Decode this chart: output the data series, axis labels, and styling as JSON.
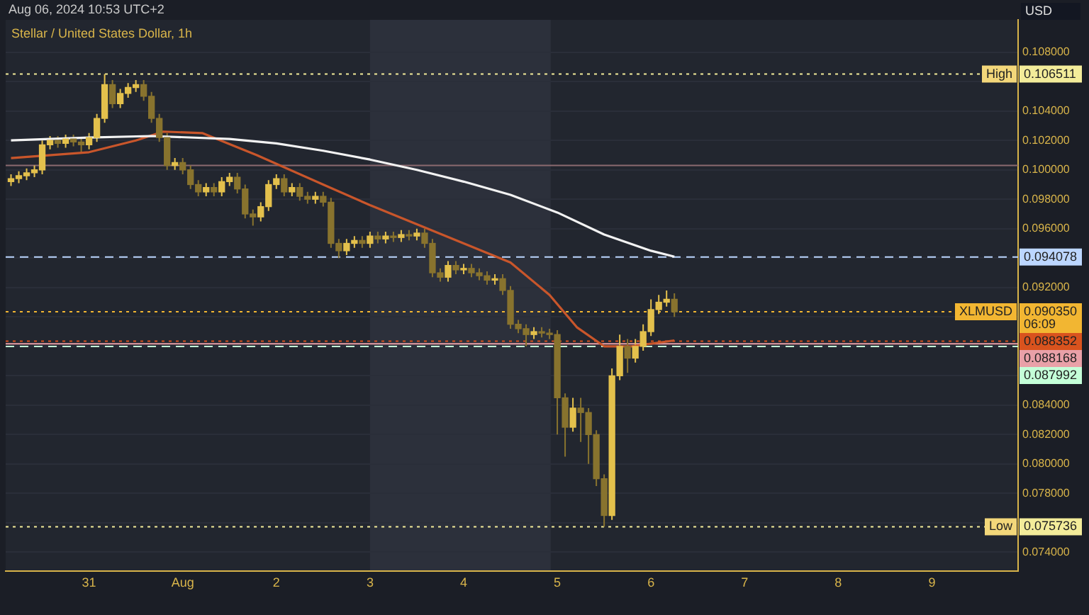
{
  "chart_data": {
    "type": "candlestick",
    "title": "Stellar / United States Dollar, 1h",
    "ylabel": "USD",
    "annotations": [
      "Aug 06, 2024 10:53 UTC+2",
      {
        "text": "High",
        "y": 0.106511
      },
      "XLMUSD",
      "06:09",
      {
        "text": "Low",
        "y": 0.075736
      }
    ],
    "x": [
      "2024-07-30T04:00",
      "2024-07-30T06:00",
      "2024-07-30T08:00",
      "2024-07-30T10:00",
      "2024-07-30T12:00",
      "2024-07-30T14:00",
      "2024-07-30T16:00",
      "2024-07-30T18:00",
      "2024-07-30T20:00",
      "2024-07-30T22:00",
      "2024-07-31T00:00",
      "2024-07-31T02:00",
      "2024-07-31T04:00",
      "2024-07-31T06:00",
      "2024-07-31T08:00",
      "2024-07-31T10:00",
      "2024-07-31T12:00",
      "2024-07-31T14:00",
      "2024-07-31T16:00",
      "2024-07-31T18:00",
      "2024-07-31T20:00",
      "2024-07-31T22:00",
      "2024-08-01T00:00",
      "2024-08-01T02:00",
      "2024-08-01T04:00",
      "2024-08-01T06:00",
      "2024-08-01T08:00",
      "2024-08-01T10:00",
      "2024-08-01T12:00",
      "2024-08-01T14:00",
      "2024-08-01T16:00",
      "2024-08-01T18:00",
      "2024-08-01T20:00",
      "2024-08-01T22:00",
      "2024-08-02T00:00",
      "2024-08-02T02:00",
      "2024-08-02T04:00",
      "2024-08-02T06:00",
      "2024-08-02T08:00",
      "2024-08-02T10:00",
      "2024-08-02T12:00",
      "2024-08-02T14:00",
      "2024-08-02T16:00",
      "2024-08-02T18:00",
      "2024-08-02T20:00",
      "2024-08-02T22:00",
      "2024-08-03T00:00",
      "2024-08-03T02:00",
      "2024-08-03T04:00",
      "2024-08-03T06:00",
      "2024-08-03T08:00",
      "2024-08-03T10:00",
      "2024-08-03T12:00",
      "2024-08-03T14:00",
      "2024-08-03T16:00",
      "2024-08-03T18:00",
      "2024-08-03T20:00",
      "2024-08-03T22:00",
      "2024-08-04T00:00",
      "2024-08-04T02:00",
      "2024-08-04T04:00",
      "2024-08-04T06:00",
      "2024-08-04T08:00",
      "2024-08-04T10:00",
      "2024-08-04T12:00",
      "2024-08-04T14:00",
      "2024-08-04T16:00",
      "2024-08-04T18:00",
      "2024-08-04T20:00",
      "2024-08-04T22:00",
      "2024-08-05T00:00",
      "2024-08-05T02:00",
      "2024-08-05T04:00",
      "2024-08-05T06:00",
      "2024-08-05T08:00",
      "2024-08-05T10:00",
      "2024-08-05T12:00",
      "2024-08-05T14:00",
      "2024-08-05T16:00",
      "2024-08-05T18:00",
      "2024-08-05T20:00",
      "2024-08-05T22:00",
      "2024-08-06T00:00",
      "2024-08-06T02:00",
      "2024-08-06T04:00",
      "2024-08-06T06:00"
    ],
    "ohlc": [
      [
        0.0992,
        0.0997,
        0.0989,
        0.0994
      ],
      [
        0.0994,
        0.0999,
        0.0991,
        0.0996
      ],
      [
        0.0996,
        0.1001,
        0.0993,
        0.0998
      ],
      [
        0.0998,
        0.1003,
        0.0995,
        0.1
      ],
      [
        0.1,
        0.102,
        0.0997,
        0.1017
      ],
      [
        0.1017,
        0.1023,
        0.1014,
        0.102
      ],
      [
        0.102,
        0.1023,
        0.1015,
        0.1018
      ],
      [
        0.1018,
        0.1024,
        0.1015,
        0.1021
      ],
      [
        0.1021,
        0.1024,
        0.1016,
        0.1019
      ],
      [
        0.1019,
        0.1022,
        0.1012,
        0.1017
      ],
      [
        0.1017,
        0.1025,
        0.1014,
        0.1022
      ],
      [
        0.1022,
        0.1038,
        0.1019,
        0.1035
      ],
      [
        0.1035,
        0.106511,
        0.1032,
        0.1058
      ],
      [
        0.1058,
        0.1061,
        0.1042,
        0.1045
      ],
      [
        0.1045,
        0.1055,
        0.1042,
        0.1052
      ],
      [
        0.1052,
        0.1059,
        0.1049,
        0.1056
      ],
      [
        0.1056,
        0.1061,
        0.1053,
        0.1058
      ],
      [
        0.1058,
        0.1061,
        0.1047,
        0.105
      ],
      [
        0.105,
        0.1053,
        0.1032,
        0.1035
      ],
      [
        0.1035,
        0.1038,
        0.1019,
        0.1022
      ],
      [
        0.1022,
        0.1025,
        0.1,
        0.1003
      ],
      [
        0.1003,
        0.1008,
        0.1,
        0.1005
      ],
      [
        0.1005,
        0.1008,
        0.0997,
        0.1
      ],
      [
        0.1,
        0.1003,
        0.0987,
        0.099
      ],
      [
        0.099,
        0.0993,
        0.0982,
        0.0985
      ],
      [
        0.0985,
        0.0991,
        0.0982,
        0.0988
      ],
      [
        0.0988,
        0.0991,
        0.0982,
        0.0985
      ],
      [
        0.0985,
        0.0995,
        0.0982,
        0.0992
      ],
      [
        0.0992,
        0.0998,
        0.0989,
        0.0995
      ],
      [
        0.0995,
        0.0998,
        0.0984,
        0.0987
      ],
      [
        0.0987,
        0.099,
        0.0967,
        0.097
      ],
      [
        0.097,
        0.0973,
        0.0962,
        0.0968
      ],
      [
        0.0968,
        0.0978,
        0.0965,
        0.0975
      ],
      [
        0.0975,
        0.0993,
        0.0972,
        0.099
      ],
      [
        0.099,
        0.0997,
        0.0987,
        0.0994
      ],
      [
        0.0994,
        0.0997,
        0.0982,
        0.0985
      ],
      [
        0.0985,
        0.0991,
        0.0982,
        0.0988
      ],
      [
        0.0988,
        0.0991,
        0.0979,
        0.0982
      ],
      [
        0.0982,
        0.0985,
        0.0977,
        0.098
      ],
      [
        0.098,
        0.0985,
        0.0977,
        0.0982
      ],
      [
        0.0982,
        0.0985,
        0.0975,
        0.0978
      ],
      [
        0.0978,
        0.0981,
        0.0947,
        0.095
      ],
      [
        0.095,
        0.0953,
        0.094,
        0.0945
      ],
      [
        0.0945,
        0.0953,
        0.0942,
        0.095
      ],
      [
        0.095,
        0.0955,
        0.0947,
        0.0952
      ],
      [
        0.0952,
        0.0955,
        0.0947,
        0.095
      ],
      [
        0.095,
        0.0958,
        0.0947,
        0.0955
      ],
      [
        0.0955,
        0.0958,
        0.095,
        0.0953
      ],
      [
        0.0953,
        0.0958,
        0.095,
        0.0955
      ],
      [
        0.0955,
        0.0958,
        0.0951,
        0.0954
      ],
      [
        0.0954,
        0.0959,
        0.0951,
        0.0956
      ],
      [
        0.0956,
        0.0959,
        0.0952,
        0.0955
      ],
      [
        0.0955,
        0.096,
        0.0952,
        0.0957
      ],
      [
        0.0957,
        0.096,
        0.0947,
        0.095
      ],
      [
        0.095,
        0.0953,
        0.0927,
        0.093
      ],
      [
        0.093,
        0.0933,
        0.0924,
        0.0927
      ],
      [
        0.0927,
        0.0938,
        0.0924,
        0.0935
      ],
      [
        0.0935,
        0.0938,
        0.0929,
        0.0932
      ],
      [
        0.0932,
        0.0936,
        0.0929,
        0.0933
      ],
      [
        0.0933,
        0.0936,
        0.0927,
        0.093
      ],
      [
        0.093,
        0.0933,
        0.0925,
        0.0928
      ],
      [
        0.0928,
        0.0931,
        0.0922,
        0.0925
      ],
      [
        0.0925,
        0.0929,
        0.0922,
        0.0926
      ],
      [
        0.0926,
        0.0929,
        0.0915,
        0.0918
      ],
      [
        0.0918,
        0.0921,
        0.0892,
        0.0895
      ],
      [
        0.0895,
        0.0898,
        0.0889,
        0.0892
      ],
      [
        0.0892,
        0.0895,
        0.088,
        0.0888
      ],
      [
        0.0888,
        0.0893,
        0.0885,
        0.089
      ],
      [
        0.089,
        0.0893,
        0.0886,
        0.0889
      ],
      [
        0.0889,
        0.0892,
        0.0885,
        0.0888
      ],
      [
        0.0888,
        0.0891,
        0.082,
        0.0845
      ],
      [
        0.0845,
        0.0848,
        0.0805,
        0.0825
      ],
      [
        0.0825,
        0.0845,
        0.0822,
        0.0838
      ],
      [
        0.0838,
        0.0845,
        0.0815,
        0.0835
      ],
      [
        0.0835,
        0.0838,
        0.08,
        0.082
      ],
      [
        0.082,
        0.0823,
        0.0785,
        0.079
      ],
      [
        0.079,
        0.0793,
        0.075736,
        0.0765
      ],
      [
        0.0765,
        0.0865,
        0.0762,
        0.086
      ],
      [
        0.086,
        0.0888,
        0.0857,
        0.088
      ],
      [
        0.088,
        0.0885,
        0.0862,
        0.0872
      ],
      [
        0.0872,
        0.0885,
        0.0869,
        0.088
      ],
      [
        0.088,
        0.0895,
        0.0877,
        0.089
      ],
      [
        0.089,
        0.0912,
        0.0887,
        0.0905
      ],
      [
        0.0905,
        0.0915,
        0.0902,
        0.091
      ],
      [
        0.091,
        0.0918,
        0.0907,
        0.0912
      ],
      [
        0.0912,
        0.0916,
        0.09,
        0.09035
      ]
    ],
    "colors": [
      "#e3c04c",
      "#e3c04c",
      "#e3c04c",
      "#e3c04c",
      "#e3c04c",
      "#e3c04c",
      "#88732e",
      "#e3c04c",
      "#88732e",
      "#88732e",
      "#e3c04c",
      "#e3c04c",
      "#e3c04c",
      "#88732e",
      "#e3c04c",
      "#e3c04c",
      "#e3c04c",
      "#88732e",
      "#88732e",
      "#88732e",
      "#88732e",
      "#e3c04c",
      "#88732e",
      "#88732e",
      "#88732e",
      "#e3c04c",
      "#88732e",
      "#e3c04c",
      "#e3c04c",
      "#88732e",
      "#88732e",
      "#88732e",
      "#e3c04c",
      "#e3c04c",
      "#e3c04c",
      "#88732e",
      "#e3c04c",
      "#88732e",
      "#88732e",
      "#e3c04c",
      "#88732e",
      "#88732e",
      "#88732e",
      "#e3c04c",
      "#e3c04c",
      "#88732e",
      "#e3c04c",
      "#88732e",
      "#e3c04c",
      "#88732e",
      "#e3c04c",
      "#88732e",
      "#e3c04c",
      "#88732e",
      "#88732e",
      "#88732e",
      "#e3c04c",
      "#88732e",
      "#e3c04c",
      "#88732e",
      "#88732e",
      "#88732e",
      "#e3c04c",
      "#88732e",
      "#88732e",
      "#88732e",
      "#88732e",
      "#e3c04c",
      "#88732e",
      "#88732e",
      "#88732e",
      "#88732e",
      "#e3c04c",
      "#88732e",
      "#88732e",
      "#88732e",
      "#88732e",
      "#e3c04c",
      "#e3c04c",
      "#88732e",
      "#e3c04c",
      "#e3c04c",
      "#e3c04c",
      "#e3c04c",
      "#e3c04c",
      "#88732e"
    ],
    "series": [
      {
        "type": "line",
        "color": "#f2f2f2",
        "x": [
          "2024-07-30T04:00",
          "2024-07-31T00:00",
          "2024-07-31T16:00",
          "2024-08-01T12:00",
          "2024-08-02T00:00",
          "2024-08-02T12:00",
          "2024-08-03T00:00",
          "2024-08-03T12:00",
          "2024-08-04T00:00",
          "2024-08-04T12:00",
          "2024-08-05T00:00",
          "2024-08-05T12:00",
          "2024-08-06T00:00",
          "2024-08-06T06:00"
        ],
        "values": [
          0.102,
          0.1022,
          0.1023,
          0.1021,
          0.1018,
          0.1013,
          0.1007,
          0.1,
          0.0992,
          0.0983,
          0.0971,
          0.0956,
          0.0945,
          0.0941
        ]
      },
      {
        "type": "line",
        "color": "#c9562b",
        "x": [
          "2024-07-30T04:00",
          "2024-07-31T00:00",
          "2024-07-31T12:00",
          "2024-07-31T19:00",
          "2024-08-01T05:00",
          "2024-08-01T19:00",
          "2024-08-02T12:00",
          "2024-08-03T00:00",
          "2024-08-03T12:00",
          "2024-08-04T00:00",
          "2024-08-04T12:00",
          "2024-08-04T22:00",
          "2024-08-05T05:00",
          "2024-08-05T12:00",
          "2024-08-05T19:00",
          "2024-08-06T06:00"
        ],
        "values": [
          0.1008,
          0.1012,
          0.102,
          0.1026,
          0.1025,
          0.101,
          0.099,
          0.0976,
          0.0963,
          0.095,
          0.0937,
          0.0915,
          0.0893,
          0.088,
          0.088,
          0.0884
        ]
      }
    ],
    "xlim": [
      "2024-07-30T02:38",
      "2024-08-09T22:05"
    ],
    "xticks": [
      {
        "value": "2024-07-31",
        "label": "31"
      },
      {
        "value": "2024-08-01",
        "label": "Aug"
      },
      {
        "value": "2024-08-02",
        "label": "2"
      },
      {
        "value": "2024-08-03",
        "label": "3"
      },
      {
        "value": "2024-08-04",
        "label": "4"
      },
      {
        "value": "2024-08-05",
        "label": "5"
      },
      {
        "value": "2024-08-06",
        "label": "6"
      },
      {
        "value": "2024-08-07",
        "label": "7"
      },
      {
        "value": "2024-08-08",
        "label": "8"
      },
      {
        "value": "2024-08-09",
        "label": "9"
      }
    ],
    "ylim": [
      0.0727,
      0.1102
    ],
    "yticks": [
      {
        "value": 0.074,
        "label": "0.074000"
      },
      {
        "value": 0.076,
        "label": null
      },
      {
        "value": 0.078,
        "label": "0.078000"
      },
      {
        "value": 0.08,
        "label": "0.080000"
      },
      {
        "value": 0.082,
        "label": "0.082000"
      },
      {
        "value": 0.084,
        "label": "0.084000"
      },
      {
        "value": 0.086,
        "label": null
      },
      {
        "value": 0.088,
        "label": null
      },
      {
        "value": 0.09,
        "label": null
      },
      {
        "value": 0.092,
        "label": "0.092000"
      },
      {
        "value": 0.094,
        "label": null
      },
      {
        "value": 0.096,
        "label": "0.096000"
      },
      {
        "value": 0.098,
        "label": "0.098000"
      },
      {
        "value": 0.1,
        "label": "0.100000"
      },
      {
        "value": 0.102,
        "label": "0.102000"
      },
      {
        "value": 0.104,
        "label": "0.104000"
      },
      {
        "value": 0.106,
        "label": null
      },
      {
        "value": 0.108,
        "label": "0.108000"
      }
    ],
    "grid": "y",
    "bands": [
      {
        "axis": "x",
        "from": "2024-08-03",
        "to": "2024-08-04T22:19",
        "color": "#2c303b"
      }
    ],
    "ref_lines": [
      {
        "axis": "y",
        "value": 0.1003,
        "color": "#8c6a70",
        "line_style": "solid"
      },
      {
        "axis": "y",
        "value": 0.106511,
        "label": "0.106511",
        "color": "#f3ec9a",
        "line_style": "dotted"
      },
      {
        "axis": "y",
        "value": 0.094078,
        "label": "0.094078",
        "color": "#bcd6ff",
        "line_style": "dashed"
      },
      {
        "axis": "y",
        "value": 0.09035,
        "label": "0.090350",
        "color": "#f2b632",
        "line_style": "dotted"
      },
      {
        "axis": "y",
        "value": 0.088352,
        "label": "0.088352",
        "color": "#d9531e",
        "line_style": "dotted"
      },
      {
        "axis": "y",
        "value": 0.088168,
        "label": "0.088168",
        "color": "#e9a0a8",
        "line_style": "solid"
      },
      {
        "axis": "y",
        "value": 0.087992,
        "label": "0.087992",
        "color": "#c4ffd8",
        "line_style": "dashed"
      },
      {
        "axis": "y",
        "value": 0.075736,
        "label": "0.075736",
        "color": "#f3ec9a",
        "line_style": "dotted"
      }
    ]
  }
}
